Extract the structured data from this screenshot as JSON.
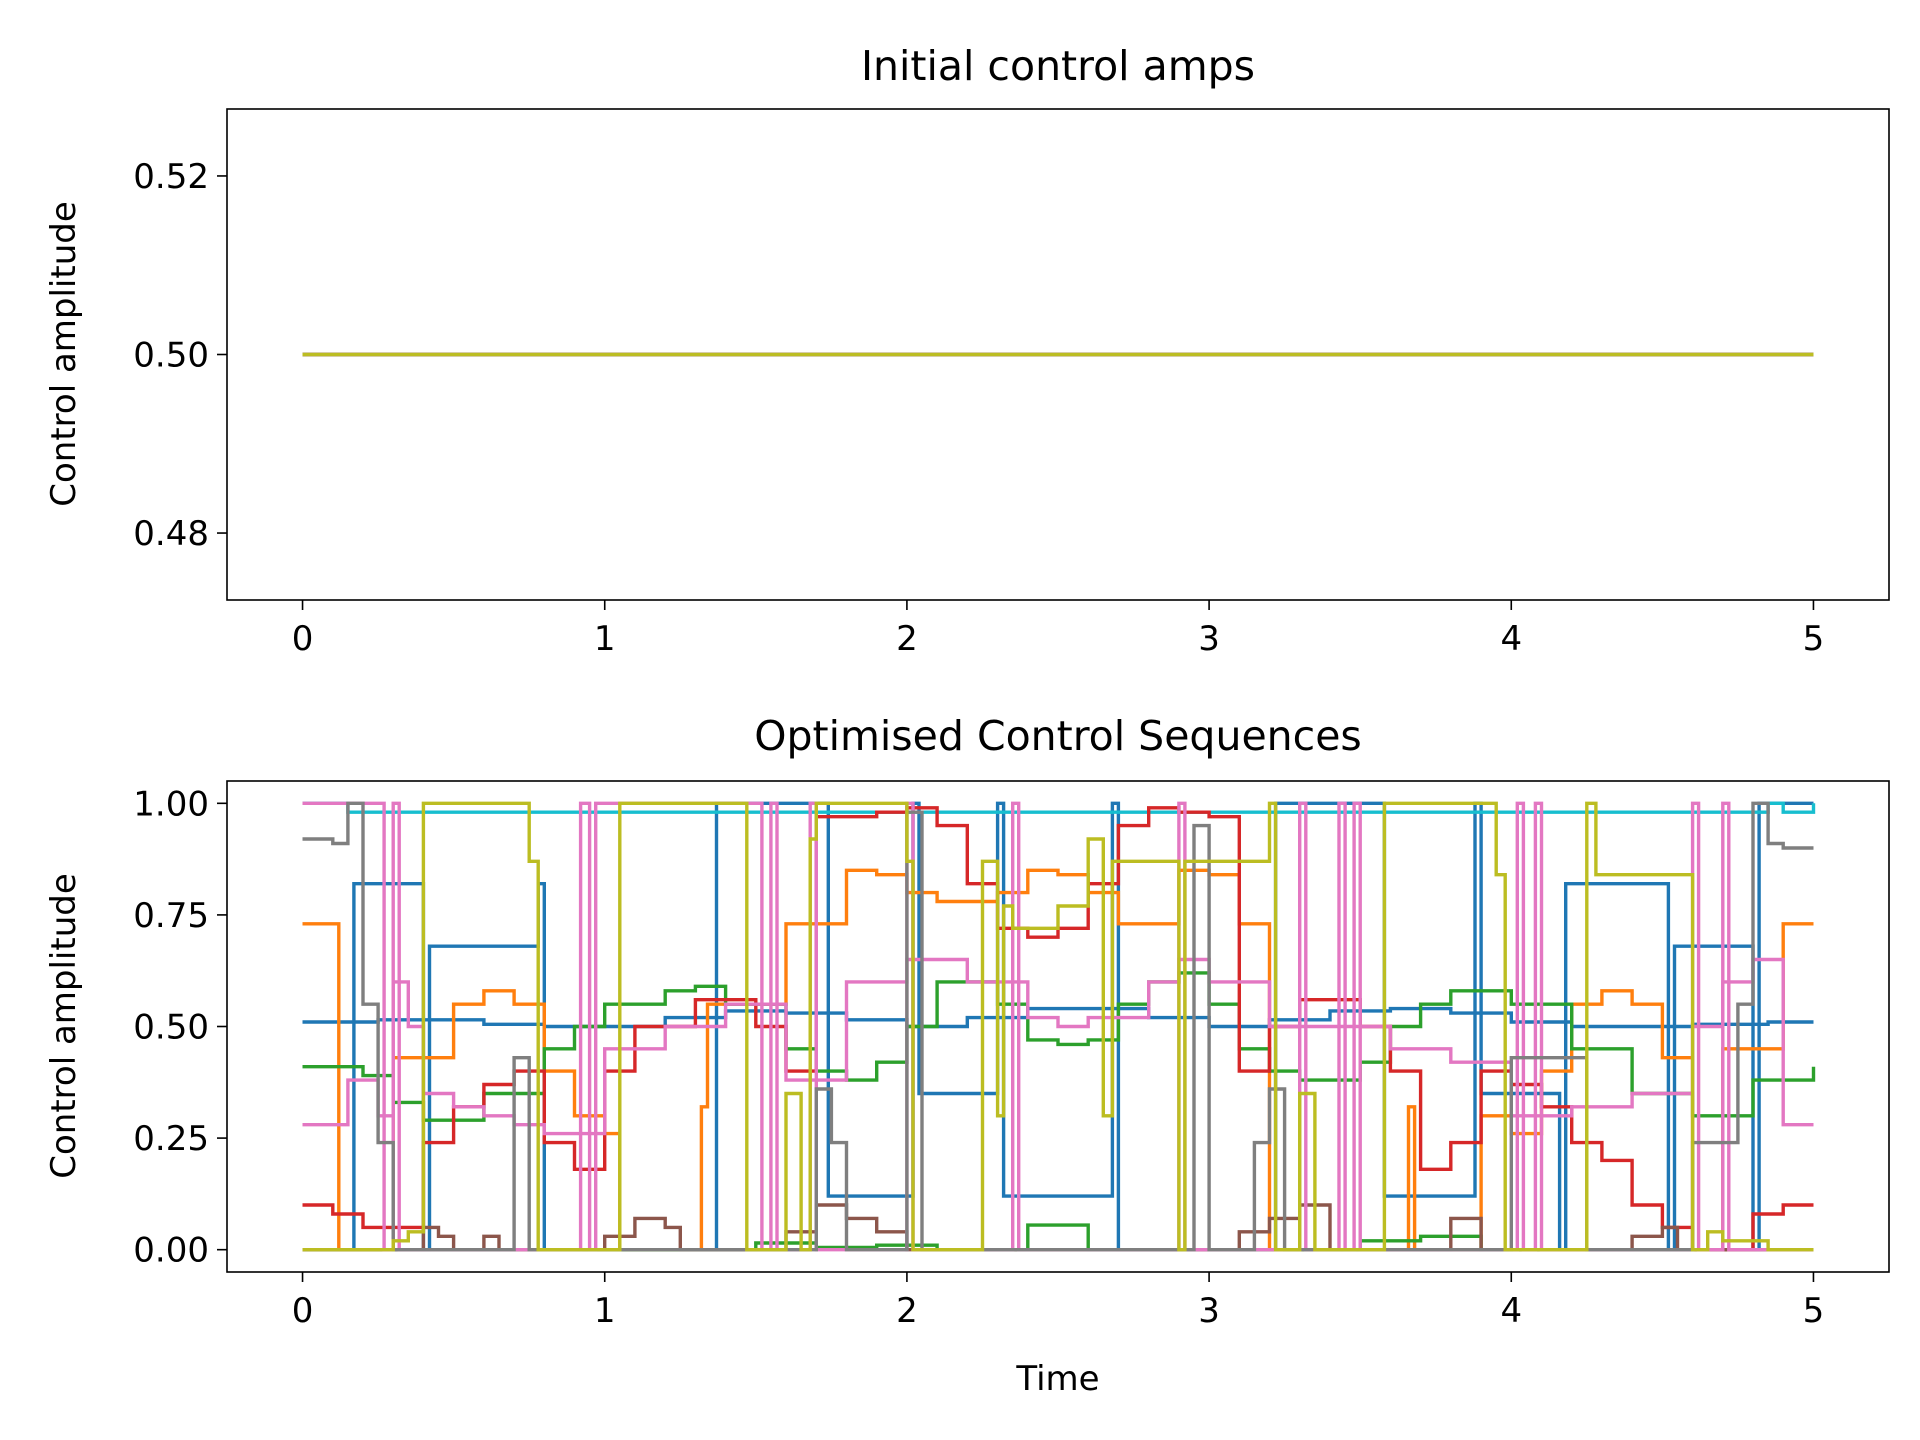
{
  "chart_data": [
    {
      "type": "line",
      "title": "Initial control amps",
      "xlabel": "",
      "ylabel": "Control amplitude",
      "xlim": [
        -0.25,
        5.25
      ],
      "ylim": [
        0.4725,
        0.5275
      ],
      "xticks": [
        "0",
        "1",
        "2",
        "3",
        "4",
        "5"
      ],
      "yticks": [
        "0.48",
        "0.50",
        "0.52"
      ],
      "grid": false,
      "legend": "none",
      "step": "post",
      "series": [
        {
          "color": "#1f77b4",
          "x": [
            0,
            5
          ],
          "y": [
            0.5,
            0.5
          ]
        },
        {
          "color": "#ff7f0e",
          "x": [
            0,
            5
          ],
          "y": [
            0.5,
            0.5
          ]
        },
        {
          "color": "#2ca02c",
          "x": [
            0,
            5
          ],
          "y": [
            0.5,
            0.5
          ]
        },
        {
          "color": "#d62728",
          "x": [
            0,
            5
          ],
          "y": [
            0.5,
            0.5
          ]
        },
        {
          "color": "#8c564b",
          "x": [
            0,
            5
          ],
          "y": [
            0.5,
            0.5
          ]
        },
        {
          "color": "#e377c2",
          "x": [
            0,
            5
          ],
          "y": [
            0.5,
            0.5
          ]
        },
        {
          "color": "#7f7f7f",
          "x": [
            0,
            5
          ],
          "y": [
            0.5,
            0.5
          ]
        },
        {
          "color": "#bcbd22",
          "x": [
            0,
            5
          ],
          "y": [
            0.5,
            0.5
          ]
        }
      ]
    },
    {
      "type": "line",
      "title": "Optimised Control Sequences",
      "xlabel": "Time",
      "ylabel": "Control amplitude",
      "xlim": [
        -0.25,
        5.25
      ],
      "ylim": [
        -0.05,
        1.05
      ],
      "xticks": [
        "0",
        "1",
        "2",
        "3",
        "4",
        "5"
      ],
      "yticks": [
        "0.00",
        "0.25",
        "0.50",
        "0.75",
        "1.00"
      ],
      "grid": false,
      "legend": "none",
      "step": "post",
      "series": [
        {
          "color": "#1f77b4",
          "x": [
            0,
            0.15,
            0.25,
            0.4,
            0.6,
            0.8,
            1.0,
            1.2,
            1.4,
            1.6,
            1.8,
            2.0,
            2.2,
            2.4,
            2.6,
            2.8,
            3.0,
            3.2,
            3.4,
            3.6,
            3.8,
            4.0,
            4.2,
            4.4,
            4.6,
            4.85,
            5.0
          ],
          "y": [
            0.51,
            0.51,
            0.515,
            0.515,
            0.505,
            0.5,
            0.5,
            0.52,
            0.535,
            0.53,
            0.515,
            0.5,
            0.52,
            0.54,
            0.54,
            0.52,
            0.5,
            0.515,
            0.535,
            0.54,
            0.53,
            0.51,
            0.5,
            0.5,
            0.505,
            0.51,
            0.51
          ]
        },
        {
          "color": "#1f77b4",
          "x": [
            0,
            0.15,
            0.17,
            0.4,
            0.42,
            0.78,
            0.8,
            1.35,
            1.37,
            1.72,
            1.74,
            2.02,
            2.04,
            2.3,
            2.32,
            2.68,
            2.7,
            3.2,
            3.22,
            3.56,
            3.58,
            3.88,
            3.9,
            4.16,
            4.18,
            4.52,
            4.54,
            4.8,
            4.82,
            5.0
          ],
          "y": [
            0.0,
            0.0,
            0.82,
            0.0,
            0.68,
            0.82,
            0.0,
            0.0,
            1.0,
            1.0,
            0.12,
            1.0,
            0.35,
            1.0,
            0.12,
            1.0,
            0.0,
            0.0,
            1.0,
            1.0,
            0.12,
            1.0,
            0.35,
            0.0,
            0.82,
            0.0,
            0.68,
            0.0,
            1.0,
            1.0
          ]
        },
        {
          "color": "#17becf",
          "x": [
            0,
            0.1,
            0.15,
            4.85,
            4.9,
            5.0
          ],
          "y": [
            1.0,
            1.0,
            0.98,
            1.0,
            0.98,
            1.0
          ]
        },
        {
          "color": "#ff7f0e",
          "x": [
            0,
            0.1,
            0.12,
            0.3,
            0.5,
            0.6,
            0.7,
            0.8,
            0.9,
            1.0,
            1.05,
            1.2,
            1.32,
            1.34,
            1.6,
            1.8,
            1.9,
            2.0,
            2.1,
            2.3,
            2.4,
            2.5,
            2.6,
            2.7,
            2.9,
            3.0,
            3.1,
            3.2,
            3.66,
            3.68,
            3.9,
            4.0,
            4.1,
            4.2,
            4.3,
            4.4,
            4.5,
            4.6,
            4.7,
            4.9,
            5.0
          ],
          "y": [
            0.73,
            0.73,
            0.0,
            0.43,
            0.55,
            0.58,
            0.55,
            0.4,
            0.3,
            0.26,
            0.0,
            0.0,
            0.32,
            0.55,
            0.73,
            0.85,
            0.84,
            0.8,
            0.78,
            0.8,
            0.85,
            0.84,
            0.8,
            0.73,
            0.85,
            0.84,
            0.73,
            0.0,
            0.32,
            0.0,
            0.3,
            0.26,
            0.4,
            0.55,
            0.58,
            0.55,
            0.43,
            0.0,
            0.45,
            0.73,
            0.73
          ]
        },
        {
          "color": "#2ca02c",
          "x": [
            0,
            0.2,
            0.3,
            0.4,
            0.6,
            0.8,
            0.9,
            1.0,
            1.2,
            1.3,
            1.4,
            1.6,
            1.7,
            1.8,
            1.9,
            2.0,
            2.1,
            2.3,
            2.4,
            2.5,
            2.6,
            2.7,
            2.8,
            2.9,
            3.0,
            3.1,
            3.2,
            3.3,
            3.5,
            3.6,
            3.7,
            3.8,
            4.0,
            4.2,
            4.4,
            4.6,
            4.8,
            5.0
          ],
          "y": [
            0.41,
            0.39,
            0.33,
            0.29,
            0.35,
            0.45,
            0.5,
            0.55,
            0.58,
            0.59,
            0.55,
            0.45,
            0.4,
            0.38,
            0.42,
            0.5,
            0.6,
            0.55,
            0.47,
            0.46,
            0.47,
            0.55,
            0.6,
            0.62,
            0.55,
            0.45,
            0.4,
            0.38,
            0.42,
            0.5,
            0.55,
            0.58,
            0.55,
            0.45,
            0.35,
            0.3,
            0.38,
            0.41
          ]
        },
        {
          "color": "#2ca02c",
          "x": [
            0,
            1.2,
            1.5,
            1.7,
            1.9,
            2.1,
            2.3,
            2.4,
            2.5,
            2.6,
            2.8,
            3.5,
            3.7,
            3.9,
            5.0
          ],
          "y": [
            0.0,
            0.0,
            0.015,
            0.005,
            0.01,
            0.0,
            0.0,
            0.055,
            0.055,
            0.0,
            0.0,
            0.02,
            0.03,
            0.0,
            0.0
          ]
        },
        {
          "color": "#d62728",
          "x": [
            0,
            0.1,
            0.2,
            0.4,
            0.5,
            0.6,
            0.7,
            0.8,
            0.9,
            1.0,
            1.1,
            1.3,
            1.4,
            1.5,
            1.6,
            1.7,
            1.9,
            2.0,
            2.1,
            2.2,
            2.3,
            2.4,
            2.5,
            2.6,
            2.7,
            2.8,
            2.9,
            3.0,
            3.1,
            3.2,
            3.3,
            3.4,
            3.5,
            3.6,
            3.7,
            3.8,
            3.9,
            4.0,
            4.1,
            4.2,
            4.3,
            4.4,
            4.5,
            4.6,
            4.8,
            4.9,
            5.0
          ],
          "y": [
            0.1,
            0.08,
            0.05,
            0.24,
            0.32,
            0.37,
            0.4,
            0.24,
            0.18,
            0.4,
            0.5,
            0.56,
            0.56,
            0.5,
            0.4,
            0.97,
            0.98,
            0.99,
            0.95,
            0.82,
            0.72,
            0.7,
            0.72,
            0.82,
            0.95,
            0.99,
            0.98,
            0.97,
            0.4,
            0.5,
            0.56,
            0.56,
            0.5,
            0.4,
            0.18,
            0.24,
            0.4,
            0.37,
            0.32,
            0.24,
            0.2,
            0.1,
            0.05,
            0.0,
            0.08,
            0.1,
            0.1
          ]
        },
        {
          "color": "#8c564b",
          "x": [
            0,
            0.3,
            0.4,
            0.45,
            0.5,
            0.6,
            0.65,
            1.0,
            1.1,
            1.2,
            1.25,
            1.6,
            1.7,
            1.8,
            1.9,
            2.0,
            3.0,
            3.1,
            3.2,
            3.3,
            3.4,
            3.75,
            3.8,
            3.9,
            4.35,
            4.4,
            4.5,
            4.55,
            5.0
          ],
          "y": [
            0.0,
            0.0,
            0.05,
            0.03,
            0.0,
            0.03,
            0.0,
            0.03,
            0.07,
            0.05,
            0.0,
            0.04,
            0.1,
            0.07,
            0.04,
            0.0,
            0.0,
            0.04,
            0.07,
            0.1,
            0.0,
            0.0,
            0.07,
            0.0,
            0.0,
            0.03,
            0.05,
            0.0,
            0.0
          ]
        },
        {
          "color": "#e377c2",
          "x": [
            0,
            0.15,
            0.25,
            0.3,
            0.35,
            0.4,
            0.5,
            0.6,
            0.7,
            0.8,
            1.0,
            1.2,
            1.4,
            1.6,
            1.8,
            2.0,
            2.2,
            2.4,
            2.5,
            2.6,
            2.8,
            2.9,
            3.0,
            3.2,
            3.4,
            3.6,
            3.8,
            4.0,
            4.2,
            4.4,
            4.6,
            4.7,
            4.8,
            4.9,
            5.0
          ],
          "y": [
            0.28,
            0.38,
            0.3,
            0.6,
            0.5,
            0.35,
            0.32,
            0.3,
            0.28,
            0.26,
            0.45,
            0.5,
            0.55,
            0.38,
            0.6,
            0.65,
            0.6,
            0.52,
            0.5,
            0.52,
            0.6,
            0.65,
            0.6,
            0.5,
            0.5,
            0.45,
            0.42,
            0.3,
            0.32,
            0.35,
            0.5,
            0.6,
            0.65,
            0.28,
            0.28
          ]
        },
        {
          "color": "#e377c2",
          "x": [
            0,
            0.25,
            0.27,
            0.3,
            0.32,
            0.9,
            0.92,
            0.95,
            0.97,
            1.5,
            1.52,
            1.55,
            1.57,
            1.68,
            1.7,
            2.0,
            2.02,
            2.35,
            2.37,
            2.9,
            2.92,
            3.3,
            3.32,
            3.43,
            3.45,
            3.48,
            3.5,
            4.02,
            4.04,
            4.08,
            4.1,
            4.6,
            4.62,
            4.7,
            4.72,
            5.0
          ],
          "y": [
            1.0,
            1.0,
            0.0,
            1.0,
            0.0,
            0.0,
            1.0,
            0.0,
            1.0,
            1.0,
            0.0,
            1.0,
            0.0,
            1.0,
            0.0,
            1.0,
            0.0,
            1.0,
            0.0,
            1.0,
            0.0,
            1.0,
            0.0,
            1.0,
            0.0,
            1.0,
            0.0,
            1.0,
            0.0,
            1.0,
            0.0,
            1.0,
            0.0,
            1.0,
            0.0,
            0.0
          ]
        },
        {
          "color": "#7f7f7f",
          "x": [
            0,
            0.1,
            0.15,
            0.2,
            0.25,
            0.3,
            0.4,
            0.7,
            0.75,
            0.9,
            1.0,
            1.6,
            1.7,
            1.75,
            1.8,
            1.85,
            1.9,
            2.0,
            2.05,
            2.1,
            2.9,
            2.95,
            3.0,
            3.1,
            3.15,
            3.2,
            3.25,
            3.3,
            3.9,
            4.0,
            4.25,
            4.3,
            4.5,
            4.6,
            4.75,
            4.8,
            4.85,
            4.9,
            5.0
          ],
          "y": [
            0.92,
            0.91,
            1.0,
            0.55,
            0.24,
            0.0,
            0.0,
            0.43,
            0.0,
            0.0,
            0.0,
            0.0,
            0.36,
            0.24,
            0.0,
            0.0,
            0.0,
            0.98,
            0.0,
            0.0,
            0.0,
            0.95,
            0.0,
            0.0,
            0.24,
            0.36,
            0.0,
            0.0,
            0.0,
            0.43,
            0.0,
            0.0,
            0.0,
            0.24,
            0.55,
            1.0,
            0.91,
            0.9,
            0.9
          ]
        },
        {
          "color": "#bcbd22",
          "x": [
            0,
            0.15,
            0.3,
            0.35,
            0.4,
            0.75,
            0.78,
            0.8,
            1.05,
            1.08,
            1.45,
            1.47,
            1.6,
            1.65,
            1.68,
            1.7,
            2.0,
            2.02,
            2.25,
            2.3,
            2.32,
            2.35,
            2.4,
            2.5,
            2.6,
            2.65,
            2.68,
            2.7,
            2.9,
            2.92,
            3.2,
            3.22,
            3.3,
            3.35,
            3.45,
            3.55,
            3.58,
            3.6,
            3.95,
            3.98,
            4.25,
            4.28,
            4.6,
            4.62,
            4.65,
            4.7,
            4.85,
            5.0
          ],
          "y": [
            0.0,
            0.0,
            0.02,
            0.04,
            1.0,
            0.87,
            0.0,
            0.0,
            1.0,
            1.0,
            1.0,
            0.0,
            0.35,
            0.0,
            0.92,
            1.0,
            0.87,
            0.0,
            0.87,
            0.3,
            0.77,
            0.72,
            0.72,
            0.77,
            0.92,
            0.3,
            0.87,
            0.87,
            0.0,
            0.87,
            1.0,
            0.0,
            0.35,
            0.0,
            0.0,
            0.0,
            1.0,
            1.0,
            0.84,
            0.0,
            1.0,
            0.84,
            0.0,
            0.0,
            0.04,
            0.02,
            0.0,
            0.0
          ]
        }
      ]
    }
  ]
}
